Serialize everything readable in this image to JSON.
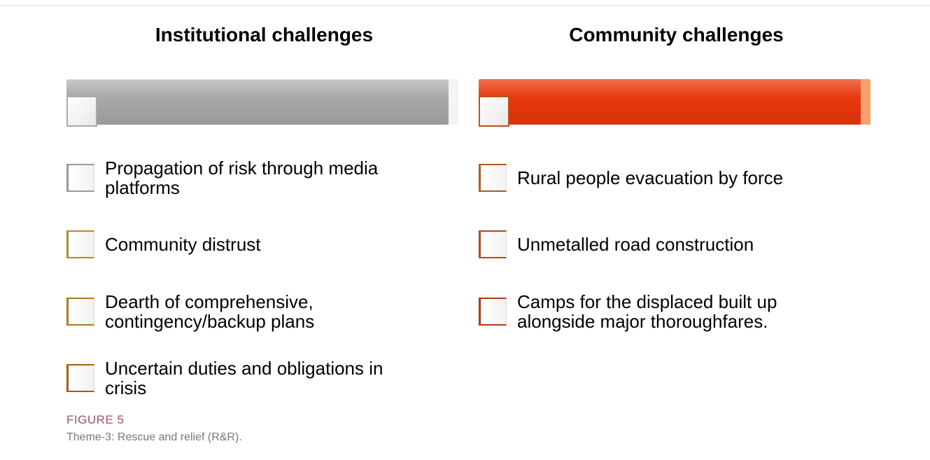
{
  "columns": [
    {
      "title": "Institutional challenges",
      "items": [
        "Propagation of risk through media platforms",
        "Community distrust",
        "Dearth of comprehensive, contingency/backup plans",
        "Uncertain duties and obligations in crisis"
      ]
    },
    {
      "title": "Community challenges",
      "items": [
        "Rural people evacuation by force",
        "Unmetalled road construction",
        "Camps for the displaced built up alongside major thoroughfares."
      ]
    }
  ],
  "figure": {
    "label": "FIGURE 5",
    "caption": "Theme-3: Rescue and relief (R&R)."
  }
}
